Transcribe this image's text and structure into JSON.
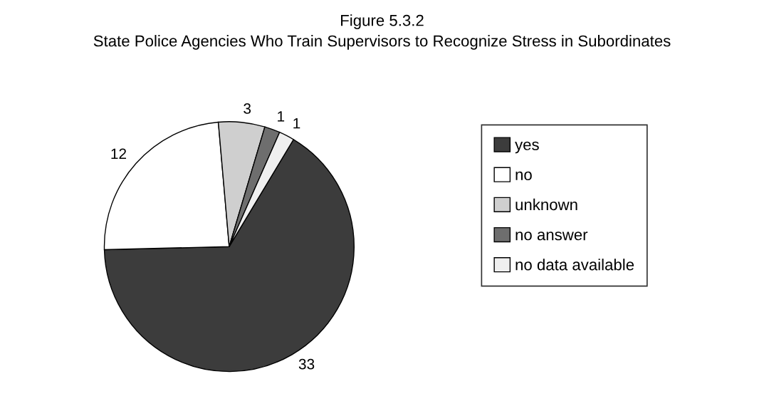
{
  "chart_data": {
    "type": "pie",
    "title": "Figure 5.3.2",
    "subtitle": "State Police Agencies Who Train Supervisors to Recognize Stress in Subordinates",
    "categories": [
      "yes",
      "no",
      "unknown",
      "no answer",
      "no data available"
    ],
    "values": [
      33,
      12,
      3,
      1,
      1
    ],
    "colors": [
      "#3c3c3c",
      "#ffffff",
      "#cfcfcf",
      "#6e6e6e",
      "#efefef"
    ],
    "data_labels": true,
    "legend": "right"
  }
}
